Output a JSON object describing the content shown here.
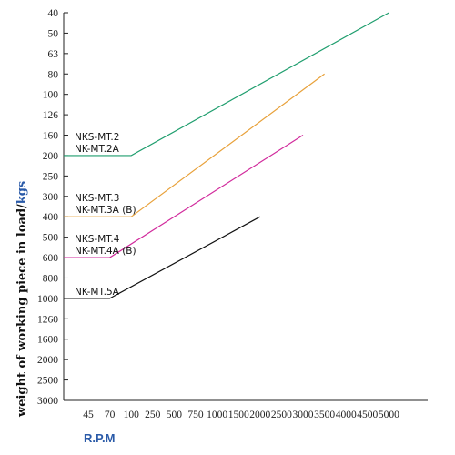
{
  "chart_data": {
    "type": "line",
    "xlabel": "R.P.M",
    "ylabel": "weight of working piece in load/kgs",
    "x_ticks": [
      "45",
      "70",
      "100",
      "250",
      "500",
      "750",
      "1000",
      "1500",
      "2000",
      "2500",
      "3000",
      "3500",
      "4000",
      "4500",
      "5000"
    ],
    "y_ticks": [
      "40",
      "50",
      "63",
      "80",
      "100",
      "126",
      "160",
      "200",
      "250",
      "300",
      "400",
      "500",
      "600",
      "800",
      "1000",
      "1260",
      "1600",
      "2000",
      "2500",
      "3000"
    ],
    "y_axis_inverted": true,
    "grid": false,
    "series": [
      {
        "labels": [
          "NKS-MT.2",
          "NK-MT.2A"
        ],
        "color": "#1f9e6e",
        "points": [
          {
            "x": "45",
            "y": "200"
          },
          {
            "x": "100",
            "y": "200"
          },
          {
            "x": "5000",
            "y": "40"
          }
        ]
      },
      {
        "labels": [
          "NKS-MT.3",
          "NK-MT.3A (B)"
        ],
        "color": "#e8a13a",
        "points": [
          {
            "x": "45",
            "y": "400"
          },
          {
            "x": "100",
            "y": "400"
          },
          {
            "x": "3500",
            "y": "80"
          }
        ]
      },
      {
        "labels": [
          "NKS-MT.4",
          "NK-MT.4A (B)"
        ],
        "color": "#d12a9c",
        "points": [
          {
            "x": "45",
            "y": "600"
          },
          {
            "x": "70",
            "y": "600"
          },
          {
            "x": "3000",
            "y": "160"
          }
        ]
      },
      {
        "labels": [
          "NK-MT.5A"
        ],
        "color": "#111111",
        "points": [
          {
            "x": "45",
            "y": "1000"
          },
          {
            "x": "70",
            "y": "1000"
          },
          {
            "x": "2000",
            "y": "400"
          }
        ]
      }
    ]
  }
}
